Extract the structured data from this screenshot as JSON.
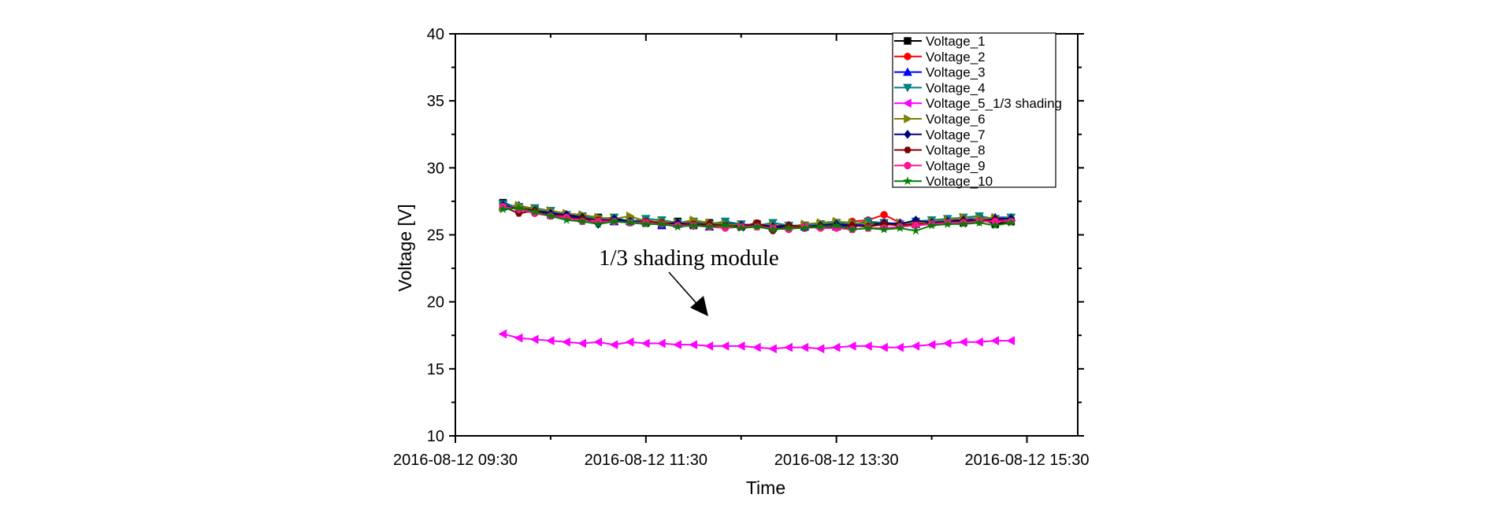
{
  "chart_data": {
    "type": "line",
    "xlabel": "Time",
    "ylabel": "Voltage [V]",
    "ylim": [
      10,
      40
    ],
    "yticks": [
      "10",
      "15",
      "20",
      "25",
      "30",
      "35",
      "40"
    ],
    "xlim": [
      "2016-08-12 09:30",
      "2016-08-12 16:02"
    ],
    "xticks": [
      "2016-08-12 09:30",
      "2016-08-12 11:30",
      "2016-08-12 13:30",
      "2016-08-12 15:30"
    ],
    "grid": false,
    "legend_position": "top-right",
    "annotation": "1/3 shading module",
    "date": "2016-08-12",
    "x": [
      "10:00",
      "10:10",
      "10:20",
      "10:30",
      "10:40",
      "10:50",
      "11:00",
      "11:10",
      "11:20",
      "11:30",
      "11:40",
      "11:50",
      "12:00",
      "12:10",
      "12:20",
      "12:30",
      "12:40",
      "12:50",
      "13:00",
      "13:10",
      "13:20",
      "13:30",
      "13:40",
      "13:50",
      "14:00",
      "14:10",
      "14:20",
      "14:30",
      "14:40",
      "14:50",
      "15:00",
      "15:10",
      "15:20"
    ],
    "series": [
      {
        "name": "Voltage_1",
        "color": "#000000",
        "marker": "square",
        "values": [
          27.4,
          27.0,
          26.9,
          26.5,
          26.4,
          26.2,
          26.3,
          26.0,
          26.1,
          25.9,
          25.8,
          26.0,
          25.7,
          25.9,
          25.8,
          25.6,
          25.8,
          25.5,
          25.6,
          25.7,
          25.8,
          25.9,
          25.6,
          25.8,
          25.9,
          25.7,
          25.8,
          25.9,
          26.0,
          25.9,
          26.2,
          25.8,
          26.0
        ]
      },
      {
        "name": "Voltage_2",
        "color": "#ff0000",
        "marker": "circle",
        "values": [
          27.2,
          27.1,
          26.7,
          26.6,
          26.4,
          26.4,
          26.1,
          26.2,
          26.0,
          26.1,
          25.9,
          25.8,
          25.9,
          25.7,
          25.9,
          25.8,
          25.6,
          25.7,
          25.7,
          25.5,
          25.6,
          25.8,
          26.0,
          26.1,
          26.5,
          25.9,
          25.9,
          26.0,
          26.1,
          26.0,
          26.2,
          26.1,
          26.2
        ]
      },
      {
        "name": "Voltage_3",
        "color": "#0000ff",
        "marker": "triangle-up",
        "values": [
          27.1,
          27.2,
          26.9,
          26.7,
          26.5,
          26.2,
          26.2,
          26.0,
          26.0,
          26.0,
          25.7,
          25.8,
          25.8,
          25.6,
          25.9,
          25.7,
          25.8,
          25.6,
          25.7,
          25.6,
          25.7,
          25.6,
          25.8,
          25.7,
          25.8,
          25.9,
          25.8,
          26.0,
          26.1,
          26.1,
          26.2,
          26.3,
          26.3
        ]
      },
      {
        "name": "Voltage_4",
        "color": "#008080",
        "marker": "triangle-down",
        "values": [
          27.3,
          27.1,
          27.0,
          26.8,
          26.5,
          26.4,
          26.2,
          26.3,
          26.0,
          26.2,
          26.1,
          25.9,
          26.0,
          25.8,
          26.0,
          25.8,
          25.7,
          25.9,
          25.7,
          25.7,
          25.8,
          25.9,
          25.8,
          26.0,
          25.9,
          25.8,
          26.0,
          26.1,
          26.2,
          26.3,
          26.4,
          26.2,
          26.3
        ]
      },
      {
        "name": "Voltage_5_1/3 shading",
        "color": "#ff00ff",
        "marker": "triangle-left",
        "values": [
          17.6,
          17.3,
          17.2,
          17.1,
          17.0,
          16.9,
          17.0,
          16.8,
          17.0,
          16.9,
          16.9,
          16.8,
          16.8,
          16.7,
          16.7,
          16.7,
          16.6,
          16.5,
          16.6,
          16.6,
          16.5,
          16.6,
          16.7,
          16.7,
          16.6,
          16.6,
          16.7,
          16.8,
          16.9,
          17.0,
          17.0,
          17.1,
          17.1
        ]
      },
      {
        "name": "Voltage_6",
        "color": "#808000",
        "marker": "triangle-right",
        "values": [
          27.0,
          27.2,
          26.9,
          26.8,
          26.6,
          26.5,
          26.3,
          26.2,
          26.4,
          26.0,
          26.0,
          25.9,
          26.1,
          25.9,
          25.8,
          25.7,
          25.8,
          25.7,
          25.6,
          25.8,
          25.9,
          26.0,
          25.9,
          25.8,
          25.7,
          25.9,
          25.8,
          26.0,
          26.1,
          26.3,
          26.2,
          26.3,
          26.1
        ]
      },
      {
        "name": "Voltage_7",
        "color": "#000080",
        "marker": "diamond",
        "values": [
          27.2,
          26.9,
          26.8,
          26.6,
          26.5,
          26.3,
          25.8,
          26.2,
          26.0,
          25.9,
          25.8,
          25.9,
          25.7,
          25.8,
          25.6,
          25.7,
          25.8,
          25.6,
          25.7,
          25.6,
          25.7,
          25.8,
          25.7,
          25.6,
          25.9,
          25.8,
          26.1,
          25.9,
          26.0,
          26.1,
          26.0,
          26.2,
          26.2
        ]
      },
      {
        "name": "Voltage_8",
        "color": "#800000",
        "marker": "hexagon",
        "values": [
          27.1,
          26.6,
          26.8,
          26.4,
          26.3,
          26.2,
          26.1,
          26.0,
          25.9,
          26.0,
          25.9,
          25.7,
          25.8,
          25.8,
          25.7,
          25.6,
          25.9,
          25.3,
          25.7,
          25.6,
          25.6,
          25.5,
          25.7,
          25.6,
          25.8,
          25.7,
          25.8,
          25.8,
          25.9,
          26.0,
          26.0,
          26.1,
          26.0
        ]
      },
      {
        "name": "Voltage_9",
        "color": "#ff1493",
        "marker": "circle",
        "values": [
          27.1,
          26.9,
          26.6,
          26.4,
          26.3,
          26.0,
          26.0,
          26.0,
          25.9,
          25.9,
          25.8,
          25.7,
          25.7,
          25.6,
          25.5,
          25.6,
          25.6,
          25.5,
          25.4,
          25.6,
          25.5,
          25.5,
          25.4,
          25.5,
          25.5,
          25.6,
          25.7,
          25.8,
          25.9,
          25.9,
          26.0,
          26.0,
          26.0
        ]
      },
      {
        "name": "Voltage_10",
        "color": "#008000",
        "marker": "star",
        "values": [
          26.9,
          27.0,
          26.7,
          26.4,
          26.1,
          26.0,
          25.8,
          26.0,
          25.9,
          25.8,
          25.8,
          25.6,
          25.7,
          25.6,
          25.7,
          25.5,
          25.6,
          25.4,
          25.5,
          25.5,
          25.6,
          25.7,
          25.4,
          25.5,
          25.4,
          25.5,
          25.3,
          25.7,
          25.8,
          25.8,
          25.9,
          25.7,
          25.9
        ]
      }
    ]
  }
}
